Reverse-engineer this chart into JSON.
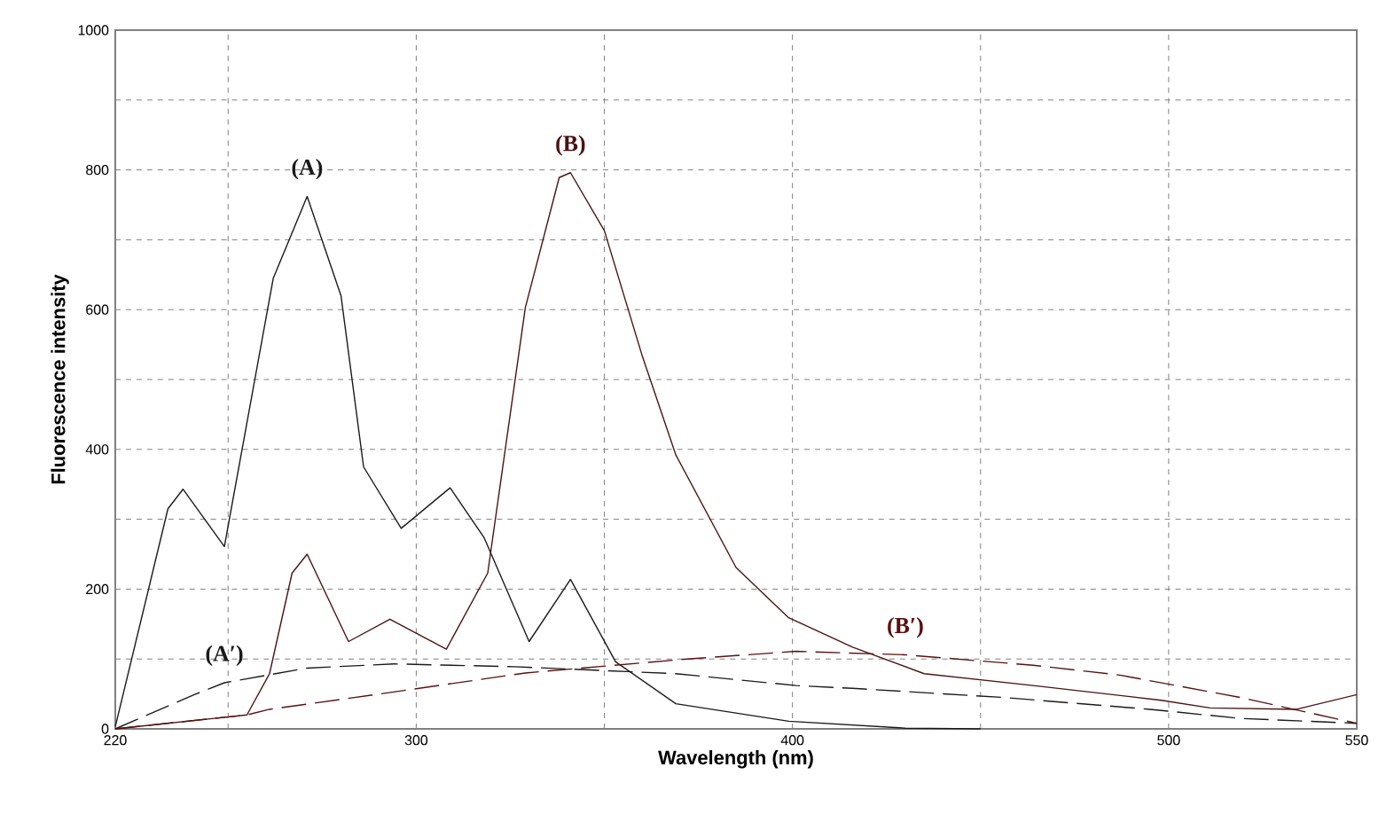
{
  "chart_data": {
    "type": "line",
    "xlabel": "Wavelength (nm)",
    "ylabel": "Fluorescence intensity",
    "xlim": [
      220,
      550
    ],
    "ylim": [
      0,
      1000
    ],
    "xticks": [
      220,
      {
        "value": 250,
        "label": null
      },
      300,
      {
        "value": 350,
        "label": null
      },
      400,
      {
        "value": 450,
        "label": null
      },
      500,
      550
    ],
    "yticks": [
      0,
      {
        "value": 100,
        "label": null
      },
      200,
      {
        "value": 300,
        "label": null
      },
      400,
      {
        "value": 500,
        "label": null
      },
      600,
      {
        "value": 700,
        "label": null
      },
      800,
      {
        "value": 900,
        "label": null
      },
      1000
    ],
    "grid": true,
    "series": [
      {
        "name": "(A)",
        "color": "#1a1a1a",
        "line_style": "solid",
        "x": [
          220,
          234,
          238,
          249,
          262,
          271,
          280,
          286,
          296,
          309,
          318,
          330,
          341,
          353,
          369,
          399,
          430,
          450
        ],
        "values": [
          3,
          315,
          343,
          261,
          645,
          762,
          620,
          375,
          287,
          345,
          274,
          125,
          214,
          96,
          36,
          11,
          1,
          0
        ]
      },
      {
        "name": "(B)",
        "color": "#4a1212",
        "line_style": "solid",
        "x": [
          220,
          255,
          261,
          267,
          271,
          282,
          293,
          308,
          319,
          329,
          338,
          341,
          350,
          360,
          369,
          385,
          399,
          416,
          435,
          464,
          498,
          511,
          534,
          550
        ],
        "values": [
          0,
          20,
          79,
          223,
          250,
          125,
          157,
          114,
          223,
          603,
          789,
          796,
          713,
          535,
          392,
          231,
          159,
          117,
          79,
          62,
          41,
          30,
          28,
          49
        ]
      },
      {
        "name": "(A′)",
        "color": "#1a1a1a",
        "line_style": "dashed",
        "x": [
          220,
          241,
          249,
          271,
          294,
          326,
          369,
          401,
          416,
          456,
          495,
          519,
          550
        ],
        "values": [
          0,
          49,
          66,
          87,
          93,
          89,
          79,
          62,
          58,
          45,
          28,
          15,
          8
        ]
      },
      {
        "name": "(B′)",
        "color": "#5a1010",
        "line_style": "dashed",
        "x": [
          220,
          255,
          261,
          289,
          329,
          372,
          401,
          430,
          464,
          487,
          519,
          550
        ],
        "values": [
          0,
          20,
          28,
          49,
          80,
          100,
          111,
          106,
          91,
          77,
          45,
          8
        ]
      }
    ]
  }
}
